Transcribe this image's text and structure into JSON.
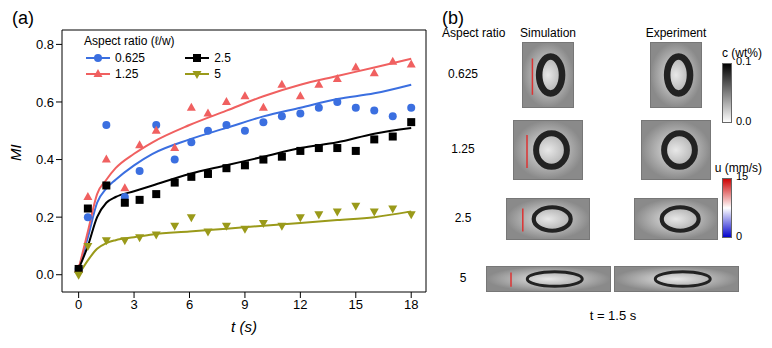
{
  "chart_data": {
    "type": "scatter",
    "title": "(a)",
    "x_label": "t (s)",
    "y_label": "MI",
    "legend_title": "Aspect ratio (ℓ/w)",
    "legend": "upper left",
    "xlim": [
      -0.9,
      18.8
    ],
    "xticks": [
      0,
      3,
      6,
      9,
      12,
      15,
      18
    ],
    "ylim": [
      -0.06,
      0.85
    ],
    "yticks": [
      {
        "value": 0,
        "label": "0.0"
      },
      0.2,
      0.4,
      0.6,
      0.8
    ],
    "series": [
      {
        "name": "0.625",
        "color": "#3b6fe0",
        "marker": "circle",
        "x": [
          0,
          0.5,
          1.5,
          2.5,
          3.3,
          4.2,
          5.2,
          6.1,
          7,
          8,
          9,
          10,
          11,
          12,
          13,
          14,
          15,
          16,
          17,
          18
        ],
        "values": [
          0.02,
          0.2,
          0.52,
          0.27,
          0.36,
          0.52,
          0.4,
          0.46,
          0.5,
          0.52,
          0.5,
          0.53,
          0.55,
          0.56,
          0.58,
          0.6,
          0.58,
          0.57,
          0.55,
          0.58
        ],
        "fit_x": [
          0,
          0.5,
          1,
          1.5,
          2,
          3,
          4,
          6,
          8,
          10,
          12,
          14,
          16,
          18
        ],
        "fit_values": [
          0.02,
          0.13,
          0.25,
          0.3,
          0.33,
          0.38,
          0.42,
          0.47,
          0.51,
          0.55,
          0.58,
          0.61,
          0.63,
          0.66
        ]
      },
      {
        "name": "1.25",
        "color": "#f06060",
        "marker": "triangle",
        "x": [
          0,
          0.5,
          1.5,
          2.5,
          3.3,
          4.2,
          5.2,
          6.1,
          7,
          8,
          9,
          10,
          11,
          12,
          13,
          14,
          15,
          16,
          17,
          18
        ],
        "values": [
          0.02,
          0.27,
          0.4,
          0.3,
          0.45,
          0.5,
          0.44,
          0.58,
          0.56,
          0.6,
          0.62,
          0.58,
          0.66,
          0.62,
          0.66,
          0.68,
          0.72,
          0.7,
          0.74,
          0.73
        ],
        "fit_x": [
          0,
          0.5,
          1,
          1.5,
          2,
          3,
          4,
          6,
          8,
          10,
          12,
          14,
          16,
          18
        ],
        "fit_values": [
          0.02,
          0.15,
          0.28,
          0.33,
          0.37,
          0.42,
          0.46,
          0.52,
          0.57,
          0.62,
          0.66,
          0.69,
          0.72,
          0.75
        ]
      },
      {
        "name": "2.5",
        "color": "#000000",
        "marker": "square",
        "x": [
          0,
          0.5,
          1.5,
          2.5,
          3.3,
          4.2,
          5.2,
          6.1,
          7,
          8,
          9,
          10,
          11,
          12,
          13,
          14,
          15,
          16,
          17,
          18
        ],
        "values": [
          0.02,
          0.23,
          0.31,
          0.25,
          0.26,
          0.28,
          0.32,
          0.34,
          0.35,
          0.37,
          0.38,
          0.4,
          0.41,
          0.43,
          0.44,
          0.44,
          0.43,
          0.47,
          0.48,
          0.53
        ],
        "fit_x": [
          0,
          0.5,
          1,
          1.5,
          2,
          3,
          4,
          6,
          8,
          10,
          12,
          14,
          16,
          18
        ],
        "fit_values": [
          0.02,
          0.1,
          0.2,
          0.25,
          0.27,
          0.29,
          0.31,
          0.35,
          0.38,
          0.41,
          0.44,
          0.46,
          0.49,
          0.51
        ]
      },
      {
        "name": "5",
        "color": "#9a9a1a",
        "marker": "triangle-down",
        "x": [
          0,
          0.5,
          1.5,
          2.5,
          3.3,
          4.2,
          5.2,
          6.1,
          7,
          8,
          9,
          10,
          11,
          12,
          13,
          14,
          15,
          16,
          17,
          18
        ],
        "values": [
          0.0,
          0.1,
          0.12,
          0.12,
          0.13,
          0.14,
          0.17,
          0.2,
          0.15,
          0.17,
          0.16,
          0.18,
          0.17,
          0.2,
          0.21,
          0.22,
          0.24,
          0.22,
          0.23,
          0.21
        ],
        "fit_x": [
          0,
          0.5,
          1,
          1.5,
          2,
          3,
          4,
          6,
          8,
          10,
          12,
          14,
          16,
          18
        ],
        "fit_values": [
          0.0,
          0.05,
          0.09,
          0.11,
          0.12,
          0.13,
          0.14,
          0.15,
          0.16,
          0.17,
          0.18,
          0.19,
          0.2,
          0.22
        ]
      }
    ]
  },
  "panel_b": {
    "label": "(b)",
    "row_header": "Aspect ratio",
    "columns": [
      "Simulation",
      "Experiment"
    ],
    "rows": [
      "0.625",
      "1.25",
      "2.5",
      "5"
    ],
    "time_label": "t = 1.5 s",
    "colorbars": [
      {
        "label": "c (wt%)",
        "range": [
          0,
          0.1
        ],
        "ticks": [
          0.1,
          {
            "value": 0,
            "label": "0.0"
          }
        ],
        "colors": [
          "#ffffff",
          "#000000"
        ]
      },
      {
        "label": "u (mm/s)",
        "range": [
          0,
          15
        ],
        "ticks": [
          15,
          0
        ],
        "colors": [
          "#0000cc",
          "#ffffff",
          "#cc0000"
        ]
      }
    ]
  }
}
